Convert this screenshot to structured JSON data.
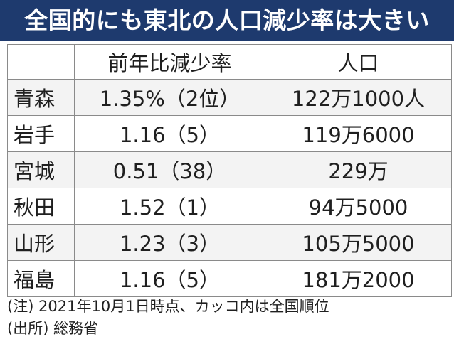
{
  "title": "全国的にも東北の人口減少率は大きい",
  "table": {
    "headers": {
      "prefecture": "",
      "rate": "前年比減少率",
      "population": "人口"
    },
    "rows": [
      {
        "prefecture": "青森",
        "rate": "1.35%（2位）",
        "population": "122万1000人"
      },
      {
        "prefecture": "岩手",
        "rate": "1.16（5）",
        "population": "119万6000"
      },
      {
        "prefecture": "宮城",
        "rate": "0.51（38）",
        "population": "229万"
      },
      {
        "prefecture": "秋田",
        "rate": "1.52（1）",
        "population": "94万5000"
      },
      {
        "prefecture": "山形",
        "rate": "1.23（3）",
        "population": "105万5000"
      },
      {
        "prefecture": "福島",
        "rate": "1.16（5）",
        "population": "181万2000"
      }
    ]
  },
  "notes": {
    "note": "(注) 2021年10月1日時点、カッコ内は全国順位",
    "source": "(出所) 総務省"
  },
  "colors": {
    "title_background": "#1e3a6e",
    "title_text": "#ffffff",
    "stripe": "#f3f3f3",
    "grid": "#8a8a8a"
  }
}
